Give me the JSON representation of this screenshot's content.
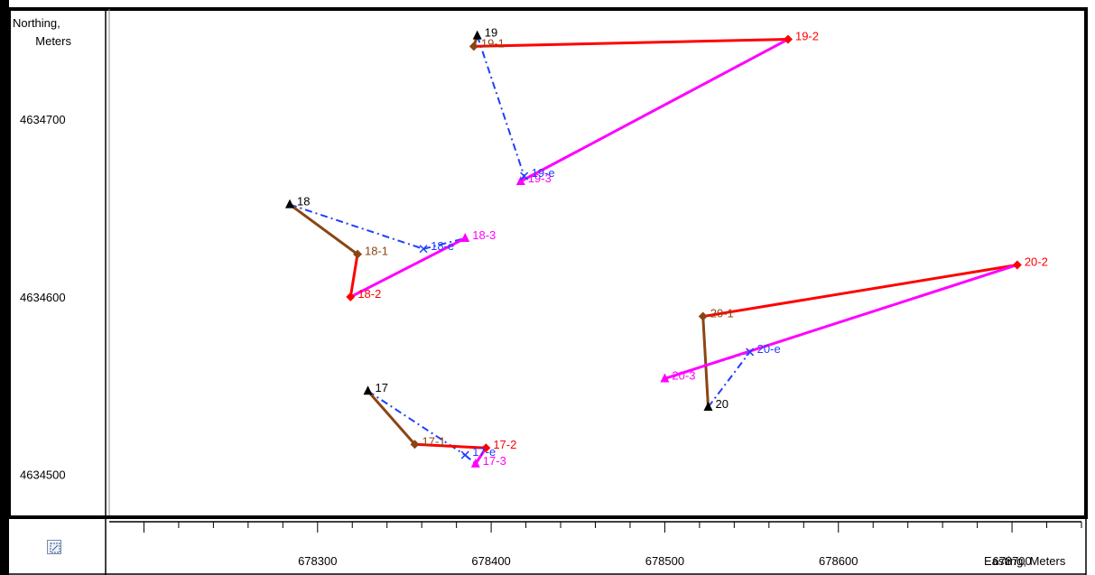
{
  "chart_data": {
    "type": "scatter",
    "xlabel": "Easting, Meters",
    "ylabel": "Northing, Meters",
    "xlim": [
      678180,
      678740
    ],
    "ylim": [
      4634477,
      4634760
    ],
    "x_ticks": [
      678300,
      678400,
      678500,
      678600,
      678700
    ],
    "y_ticks": [
      4634500,
      4634600,
      4634700
    ],
    "grid": false,
    "legend": "none",
    "colors": {
      "start": "#000000",
      "first": "#8B4513",
      "second": "#FF0000",
      "third": "#FF00FF",
      "estimate": "#1E3FFF"
    },
    "groups": [
      {
        "points": [
          {
            "label": "17",
            "kind": "start",
            "x": 678329,
            "y": 4634547
          },
          {
            "label": "17-1",
            "kind": "first",
            "x": 678356,
            "y": 4634517
          },
          {
            "label": "17-2",
            "kind": "second",
            "x": 678397,
            "y": 4634515
          },
          {
            "label": "17-3",
            "kind": "third",
            "x": 678391,
            "y": 4634506
          },
          {
            "label": "17-e",
            "kind": "estimate",
            "x": 678385,
            "y": 4634511
          }
        ]
      },
      {
        "points": [
          {
            "label": "18",
            "kind": "start",
            "x": 678284,
            "y": 4634652
          },
          {
            "label": "18-1",
            "kind": "first",
            "x": 678323,
            "y": 4634624
          },
          {
            "label": "18-2",
            "kind": "second",
            "x": 678319,
            "y": 4634600
          },
          {
            "label": "18-3",
            "kind": "third",
            "x": 678385,
            "y": 4634633
          },
          {
            "label": "18-e",
            "kind": "estimate",
            "x": 678361,
            "y": 4634627
          }
        ]
      },
      {
        "points": [
          {
            "label": "19",
            "kind": "start",
            "x": 678392,
            "y": 4634747
          },
          {
            "label": "19-1",
            "kind": "first",
            "x": 678390,
            "y": 4634741
          },
          {
            "label": "19-2",
            "kind": "second",
            "x": 678571,
            "y": 4634745
          },
          {
            "label": "19-3",
            "kind": "third",
            "x": 678417,
            "y": 4634665
          },
          {
            "label": "19-e",
            "kind": "estimate",
            "x": 678419,
            "y": 4634668
          }
        ]
      },
      {
        "points": [
          {
            "label": "20",
            "kind": "start",
            "x": 678525,
            "y": 4634538
          },
          {
            "label": "20-1",
            "kind": "first",
            "x": 678522,
            "y": 4634589
          },
          {
            "label": "20-2",
            "kind": "second",
            "x": 678703,
            "y": 4634618
          },
          {
            "label": "20-3",
            "kind": "third",
            "x": 678500,
            "y": 4634554
          },
          {
            "label": "20-e",
            "kind": "estimate",
            "x": 678549,
            "y": 4634569
          }
        ]
      }
    ]
  },
  "toolbar": {
    "zoom_icon": "zoom-extent-icon"
  }
}
